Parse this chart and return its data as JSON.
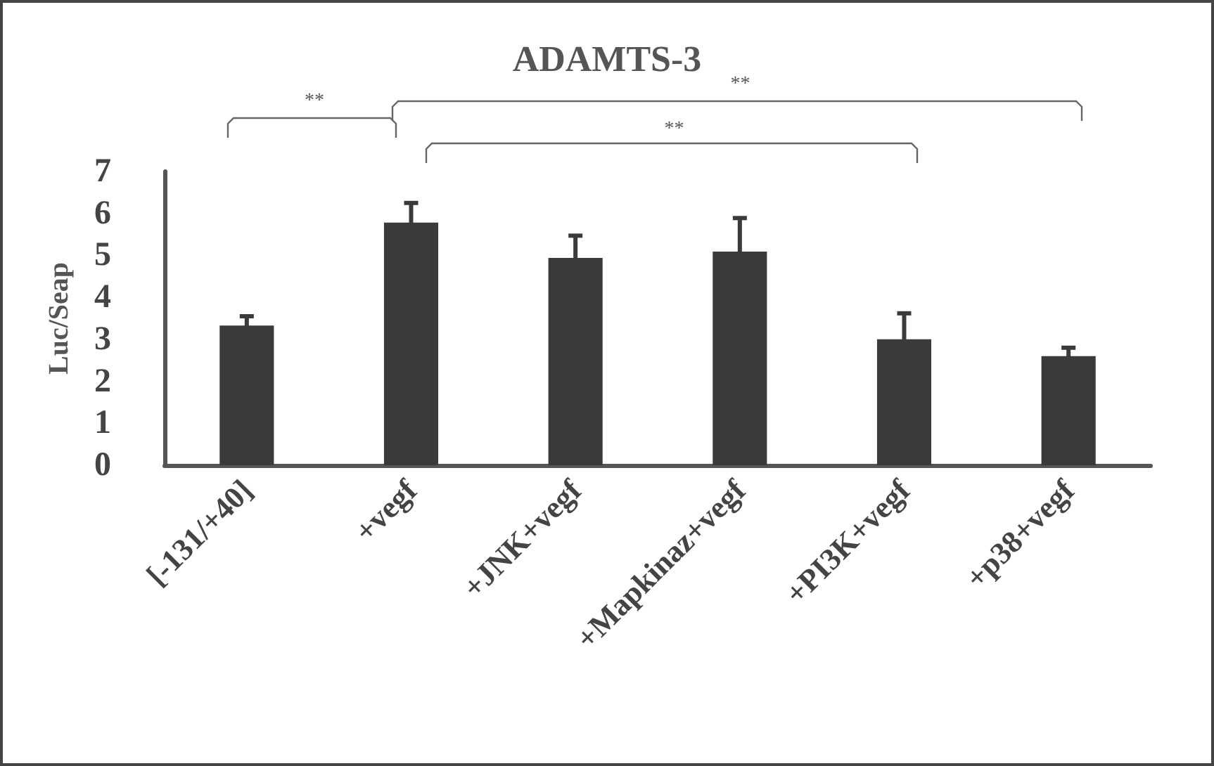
{
  "chart_data": {
    "type": "bar",
    "title": "ADAMTS-3",
    "ylabel": "Luc/Seap",
    "categories": [
      "[-131/+40]",
      "+vegf",
      "+JNK+vegf",
      "+Mapkinaz+vegf",
      "+PI3K+vegf",
      "+p38+vegf"
    ],
    "values": [
      3.33,
      5.78,
      4.94,
      5.09,
      3.0,
      2.6
    ],
    "errors": [
      0.22,
      0.47,
      0.53,
      0.8,
      0.62,
      0.2
    ],
    "color": "#3a3a3a",
    "ylim": [
      0,
      7
    ],
    "yticks": [
      0,
      1,
      2,
      3,
      4,
      5,
      6,
      7
    ],
    "grid": false,
    "annotations": [
      "**",
      "**",
      "**"
    ]
  }
}
